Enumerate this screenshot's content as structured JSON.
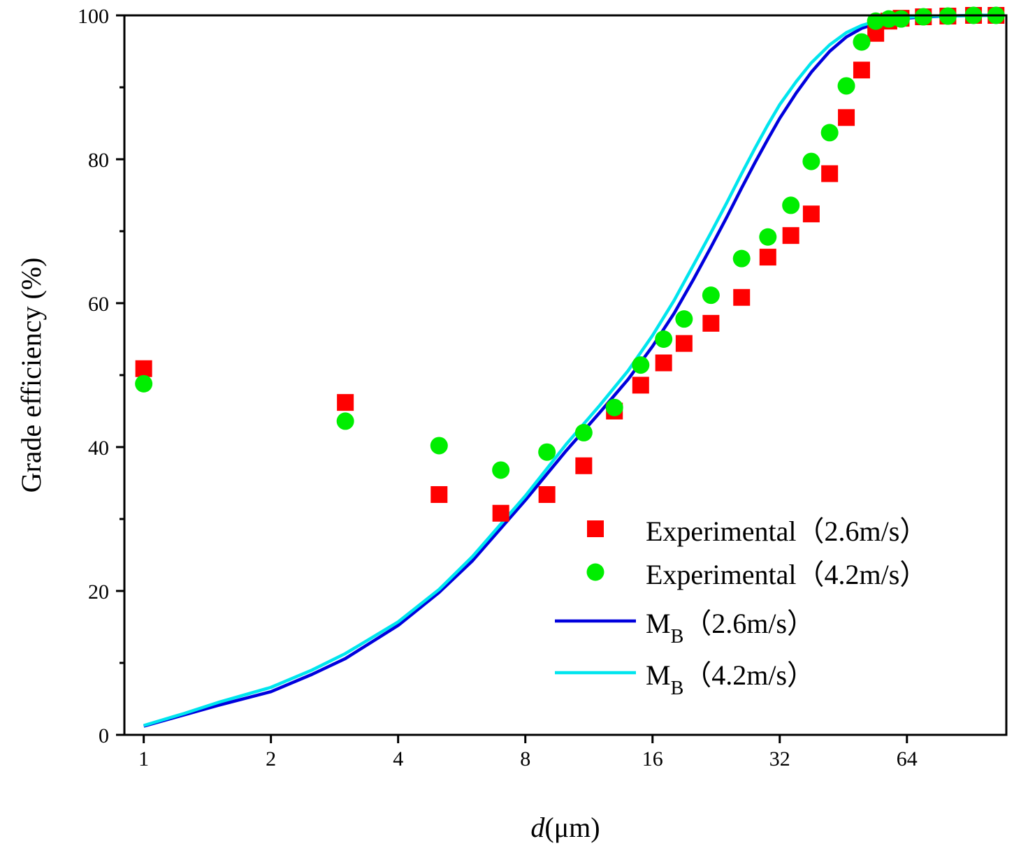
{
  "chart_data": {
    "type": "scatter",
    "xlabel": {
      "italic": "d",
      "rest": "(μm)"
    },
    "ylabel": "Grade efficiency (%)",
    "x_scale": "log2",
    "xlim": [
      0.9,
      110
    ],
    "ylim": [
      0,
      100
    ],
    "x_ticks": [
      1,
      2,
      4,
      8,
      16,
      32,
      64
    ],
    "x_tick_labels": [
      "1",
      "2",
      "4",
      "8",
      "16",
      "32",
      "64"
    ],
    "y_ticks": [
      0,
      20,
      40,
      60,
      80,
      100
    ],
    "y_tick_labels": [
      "0",
      "20",
      "40",
      "60",
      "80",
      "100"
    ],
    "legend_position": "lower-right",
    "series": [
      {
        "name": "Experimental（2.6m/s）",
        "kind": "scatter",
        "marker": "square",
        "color": "#ff0000",
        "x": [
          1,
          3,
          5,
          7,
          9,
          11,
          13,
          15,
          17,
          19,
          22,
          26,
          30,
          34,
          38,
          42,
          46,
          50,
          54,
          58,
          62,
          70,
          80,
          92,
          104
        ],
        "y": [
          50.9,
          46.2,
          33.4,
          30.8,
          33.4,
          37.4,
          45.0,
          48.6,
          51.7,
          54.4,
          57.2,
          60.8,
          66.4,
          69.4,
          72.4,
          78.0,
          85.8,
          92.4,
          97.5,
          99.2,
          99.6,
          99.8,
          99.9,
          100,
          100
        ]
      },
      {
        "name": "Experimental（4.2m/s）",
        "kind": "scatter",
        "marker": "circle",
        "color": "#00ee00",
        "x": [
          1,
          3,
          5,
          7,
          9,
          11,
          13,
          15,
          17,
          19,
          22,
          26,
          30,
          34,
          38,
          42,
          46,
          50,
          54,
          58,
          62,
          70,
          80,
          92,
          104
        ],
        "y": [
          48.8,
          43.6,
          40.2,
          36.8,
          39.3,
          42.0,
          45.5,
          51.4,
          55.0,
          57.8,
          61.1,
          66.2,
          69.2,
          73.6,
          79.7,
          83.7,
          90.2,
          96.3,
          99.2,
          99.5,
          99.5,
          99.8,
          99.9,
          100,
          100
        ]
      },
      {
        "name": "M",
        "name_subscript": "B",
        "name_suffix": "（2.6m/s）",
        "kind": "line",
        "color": "#0000dd",
        "x": [
          1,
          1.25,
          1.5,
          2,
          2.5,
          3,
          4,
          5,
          6,
          8,
          10,
          12,
          14,
          16,
          18,
          20,
          22,
          24,
          26,
          28,
          30,
          32,
          35,
          38,
          42,
          46,
          50,
          55,
          60,
          70,
          80,
          92,
          104
        ],
        "y": [
          1.2,
          2.8,
          4.1,
          6.0,
          8.4,
          10.6,
          15.2,
          19.8,
          24.2,
          32.6,
          39.5,
          44.8,
          49.4,
          54.0,
          58.6,
          63.3,
          67.8,
          72.0,
          76.0,
          79.6,
          82.8,
          85.7,
          89.2,
          92.1,
          95.0,
          97.0,
          98.2,
          99.0,
          99.5,
          99.8,
          99.9,
          100,
          100
        ]
      },
      {
        "name": "M",
        "name_subscript": "B",
        "name_suffix": "（4.2m/s）",
        "kind": "line",
        "color": "#00e5ee",
        "x": [
          1,
          1.25,
          1.5,
          2,
          2.5,
          3,
          4,
          5,
          6,
          8,
          10,
          12,
          14,
          16,
          18,
          20,
          22,
          24,
          26,
          28,
          30,
          32,
          35,
          38,
          42,
          46,
          50,
          55,
          60,
          70,
          80,
          92,
          104
        ],
        "y": [
          1.3,
          3.0,
          4.5,
          6.6,
          9.0,
          11.3,
          15.7,
          20.2,
          24.8,
          33.2,
          40.4,
          45.8,
          50.6,
          55.5,
          60.4,
          65.3,
          69.8,
          74.0,
          78.0,
          81.6,
          84.8,
          87.6,
          90.8,
          93.4,
          95.9,
          97.6,
          98.6,
          99.3,
          99.6,
          99.9,
          99.9,
          100,
          100
        ]
      }
    ]
  }
}
